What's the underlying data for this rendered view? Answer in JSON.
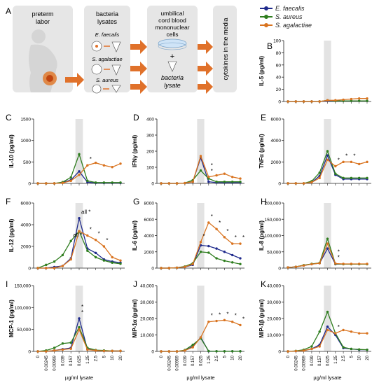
{
  "figure": {
    "panel_a_letter": "A",
    "schematic": {
      "box1": [
        "preterm",
        "labor"
      ],
      "box2": [
        "bacteria",
        "lysates"
      ],
      "box2_items": [
        "E. faecalis",
        "S. agalactiae",
        "S. aureus"
      ],
      "box3": [
        "umbilical",
        "cord blood",
        "mononuclear",
        "cells"
      ],
      "plus": "+",
      "box3_bottom": [
        "bacteria",
        "lysate"
      ],
      "box4": "cytokines in the media"
    },
    "legend": [
      {
        "name": "E. faecalis",
        "color": "#1f2a8c"
      },
      {
        "name": "S. aureus",
        "color": "#2e7d1e"
      },
      {
        "name": "S. agalactiae",
        "color": "#d9731f"
      }
    ],
    "xlabel": "µg/ml lysate",
    "x_ticks": [
      "0",
      "0.00245",
      "0.00969",
      "0.039",
      "0.157",
      "0.625",
      "1.25",
      "2.5",
      "5",
      "10",
      "20"
    ]
  },
  "chart_data": [
    {
      "type": "line",
      "panel": "B",
      "ylabel": "IL-5 (pg/ml)",
      "ylim": [
        0,
        100
      ],
      "yticks": [
        "0",
        "20",
        "40",
        "60",
        "80",
        "100"
      ],
      "series": [
        {
          "name": "E. faecalis",
          "values": [
            0,
            0,
            0,
            0,
            0,
            1,
            1,
            1,
            1,
            1,
            1
          ]
        },
        {
          "name": "S. aureus",
          "values": [
            0,
            0,
            0,
            0,
            0,
            2,
            1,
            1,
            1,
            1,
            1
          ]
        },
        {
          "name": "S. agalactiae",
          "values": [
            0,
            0,
            0,
            0,
            0,
            2,
            2,
            3,
            4,
            5,
            5
          ]
        }
      ],
      "stars": []
    },
    {
      "type": "line",
      "panel": "C",
      "ylabel": "IL-10 (pg/ml)",
      "ylim": [
        0,
        1500
      ],
      "yticks": [
        "0",
        "500",
        "1000",
        "1500"
      ],
      "series": [
        {
          "name": "E. faecalis",
          "values": [
            0,
            0,
            0,
            20,
            80,
            280,
            30,
            10,
            10,
            10,
            10
          ]
        },
        {
          "name": "S. aureus",
          "values": [
            0,
            0,
            0,
            30,
            140,
            680,
            60,
            20,
            20,
            20,
            20
          ]
        },
        {
          "name": "S. agalactiae",
          "values": [
            0,
            0,
            0,
            10,
            60,
            200,
            420,
            480,
            420,
            380,
            460
          ]
        }
      ],
      "stars": [
        {
          "x": 6,
          "label": "*"
        }
      ]
    },
    {
      "type": "line",
      "panel": "D",
      "ylabel": "IFNγ (pg/ml)",
      "ylim": [
        0,
        400
      ],
      "yticks": [
        "0",
        "100",
        "200",
        "300",
        "400"
      ],
      "series": [
        {
          "name": "E. faecalis",
          "values": [
            0,
            0,
            0,
            2,
            10,
            160,
            10,
            5,
            5,
            5,
            5
          ]
        },
        {
          "name": "S. aureus",
          "values": [
            0,
            0,
            0,
            2,
            20,
            80,
            30,
            10,
            10,
            10,
            10
          ]
        },
        {
          "name": "S. agalactiae",
          "values": [
            0,
            0,
            0,
            2,
            10,
            170,
            40,
            50,
            60,
            40,
            30
          ]
        }
      ],
      "stars": [
        {
          "x": 6,
          "label": "*"
        },
        {
          "x": 6,
          "label": "*"
        }
      ]
    },
    {
      "type": "line",
      "panel": "E",
      "ylabel": "TNFα (pg/ml)",
      "ylim": [
        0,
        6000
      ],
      "yticks": [
        "0",
        "2000",
        "4000",
        "6000"
      ],
      "series": [
        {
          "name": "E. faecalis",
          "values": [
            0,
            0,
            0,
            100,
            700,
            2600,
            800,
            400,
            400,
            400,
            400
          ]
        },
        {
          "name": "S. aureus",
          "values": [
            0,
            0,
            0,
            200,
            1000,
            3000,
            900,
            500,
            500,
            500,
            500
          ]
        },
        {
          "name": "S. agalactiae",
          "values": [
            0,
            0,
            0,
            100,
            500,
            2200,
            1600,
            2000,
            2000,
            1800,
            2000
          ]
        }
      ],
      "stars": [
        {
          "x": 6,
          "label": "*"
        },
        {
          "x": 7,
          "label": "*"
        },
        {
          "x": 8,
          "label": "*"
        }
      ]
    },
    {
      "type": "line",
      "panel": "F",
      "ylabel": "IL-12 (pg/ml)",
      "ylim": [
        0,
        6000
      ],
      "yticks": [
        "0",
        "2000",
        "4000",
        "6000"
      ],
      "series": [
        {
          "name": "E. faecalis",
          "values": [
            0,
            0,
            100,
            200,
            900,
            4600,
            1800,
            1400,
            800,
            600,
            500
          ]
        },
        {
          "name": "S. aureus",
          "values": [
            0,
            300,
            600,
            1200,
            2500,
            3400,
            1600,
            1000,
            700,
            500,
            400
          ]
        },
        {
          "name": "S. agalactiae",
          "values": [
            0,
            0,
            0,
            200,
            800,
            3400,
            3000,
            2600,
            2000,
            1000,
            700
          ]
        }
      ],
      "stars": [
        {
          "x": 5,
          "label": "all *"
        },
        {
          "x": 4,
          "label": "all *"
        },
        {
          "x": 6,
          "label": "*"
        },
        {
          "x": 7,
          "label": "*"
        },
        {
          "x": 8,
          "label": "*"
        }
      ]
    },
    {
      "type": "line",
      "panel": "G",
      "ylabel": "IL-6 (pg/ml)",
      "ylim": [
        0,
        8000
      ],
      "yticks": [
        "0",
        "2000",
        "4000",
        "6000",
        "8000"
      ],
      "series": [
        {
          "name": "E. faecalis",
          "values": [
            0,
            0,
            50,
            150,
            400,
            2800,
            2700,
            2400,
            2000,
            1600,
            1200
          ]
        },
        {
          "name": "S. aureus",
          "values": [
            0,
            0,
            50,
            200,
            600,
            2000,
            1900,
            1200,
            900,
            700,
            500
          ]
        },
        {
          "name": "S. agalactiae",
          "values": [
            0,
            0,
            50,
            150,
            500,
            3200,
            5600,
            4800,
            3800,
            3000,
            3000
          ]
        }
      ],
      "stars": [
        {
          "x": 5,
          "label": "*"
        },
        {
          "x": 6,
          "label": "*"
        },
        {
          "x": 7,
          "label": "*"
        },
        {
          "x": 8,
          "label": "*"
        },
        {
          "x": 9,
          "label": "*"
        },
        {
          "x": 10,
          "label": "*"
        }
      ]
    },
    {
      "type": "line",
      "panel": "H",
      "ylabel": "IL-8 (pg/ml)",
      "ylim": [
        0,
        200000
      ],
      "yticks": [
        "0",
        "50,000",
        "100,000",
        "150,000",
        "200,000"
      ],
      "series": [
        {
          "name": "E. faecalis",
          "values": [
            2000,
            4000,
            8000,
            12000,
            15000,
            60000,
            12000,
            12000,
            12000,
            12000,
            12000
          ]
        },
        {
          "name": "S. aureus",
          "values": [
            2000,
            4000,
            9000,
            13000,
            16000,
            90000,
            13000,
            12000,
            12000,
            12000,
            12000
          ]
        },
        {
          "name": "S. agalactiae",
          "values": [
            2000,
            4000,
            8000,
            12000,
            15000,
            75000,
            14000,
            13000,
            13000,
            13000,
            13000
          ]
        }
      ],
      "stars": [
        {
          "x": 6,
          "label": "*"
        },
        {
          "x": 6,
          "label": "*"
        }
      ]
    },
    {
      "type": "line",
      "panel": "I",
      "ylabel": "MCP-1 (pg/ml)",
      "ylim": [
        0,
        150000
      ],
      "yticks": [
        "0",
        "50,000",
        "100,000",
        "150,000"
      ],
      "series": [
        {
          "name": "E. faecalis",
          "values": [
            0,
            0,
            2000,
            5000,
            8000,
            75000,
            5000,
            2000,
            1000,
            1000,
            1000
          ]
        },
        {
          "name": "S. aureus",
          "values": [
            0,
            2000,
            8000,
            18000,
            20000,
            55000,
            8000,
            3000,
            2000,
            1000,
            1000
          ]
        },
        {
          "name": "S. agalactiae",
          "values": [
            0,
            0,
            2000,
            4000,
            6000,
            50000,
            4000,
            2000,
            1000,
            1000,
            1000
          ]
        }
      ],
      "stars": [
        {
          "x": 5,
          "label": "*"
        },
        {
          "x": 5,
          "label": "*"
        }
      ]
    },
    {
      "type": "line",
      "panel": "J",
      "ylabel": "MIP-1α (pg/ml)",
      "ylim": [
        0,
        40000
      ],
      "yticks": [
        "0",
        "10,000",
        "20,000",
        "30,000",
        "40,000"
      ],
      "series": [
        {
          "name": "E. faecalis",
          "values": [
            0,
            0,
            0,
            500,
            3000,
            8500,
            100,
            100,
            100,
            100,
            100
          ]
        },
        {
          "name": "S. aureus",
          "values": [
            0,
            0,
            0,
            800,
            4000,
            8000,
            200,
            100,
            100,
            100,
            100
          ]
        },
        {
          "name": "S. agalactiae",
          "values": [
            0,
            0,
            0,
            500,
            2500,
            8500,
            18000,
            18500,
            19000,
            18000,
            16000
          ]
        }
      ],
      "stars": [
        {
          "x": 6,
          "label": "*"
        },
        {
          "x": 7,
          "label": "*"
        },
        {
          "x": 8,
          "label": "*"
        },
        {
          "x": 9,
          "label": "*"
        },
        {
          "x": 10,
          "label": "*"
        }
      ]
    },
    {
      "type": "line",
      "panel": "K",
      "ylabel": "MIP-1β (pg/ml)",
      "ylim": [
        0,
        40000
      ],
      "yticks": [
        "0",
        "10,000",
        "20,000",
        "30,000",
        "40,000"
      ],
      "series": [
        {
          "name": "E. faecalis",
          "values": [
            0,
            200,
            500,
            1500,
            4000,
            15000,
            10000,
            2000,
            1500,
            1000,
            1000
          ]
        },
        {
          "name": "S. aureus",
          "values": [
            0,
            300,
            1000,
            3000,
            12000,
            24000,
            11000,
            2500,
            1500,
            1200,
            1000
          ]
        },
        {
          "name": "S. agalactiae",
          "values": [
            0,
            200,
            500,
            1500,
            3000,
            13000,
            11000,
            13000,
            12000,
            11000,
            11000
          ]
        }
      ],
      "stars": [
        {
          "x": 6,
          "label": "*"
        }
      ]
    }
  ]
}
